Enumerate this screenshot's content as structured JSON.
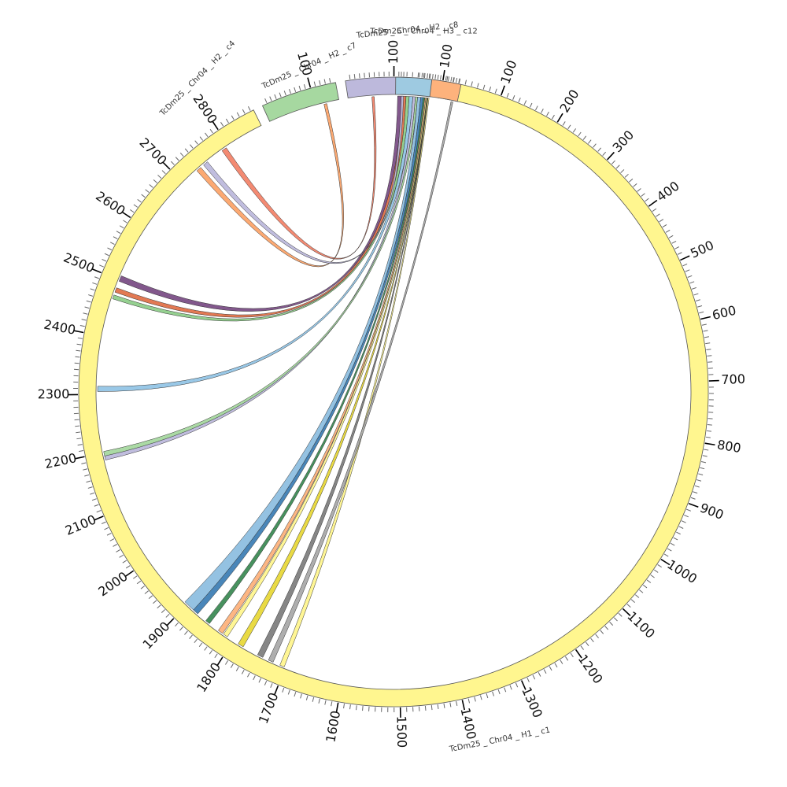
{
  "diagram": {
    "type": "circos",
    "colors": {
      "c1": "#fff68f",
      "c4": "#a6d8a0",
      "c7": "#bdb9dc",
      "c8": "#fdb27c",
      "c12": "#9ecae1",
      "stroke": "#555555"
    },
    "segments": [
      {
        "id": "c1",
        "label": "TcDm25 _ Chr04 _ H1 _ c1",
        "length": 2865,
        "color": "#fff68f",
        "ticks": [
          "100",
          "200",
          "300",
          "400",
          "500",
          "600",
          "700",
          "800",
          "900",
          "1000",
          "1100",
          "1200",
          "1300",
          "1400",
          "1500",
          "1600",
          "1700",
          "1800",
          "1900",
          "2000",
          "2100",
          "2200",
          "2300",
          "2400",
          "2500",
          "2600",
          "2700",
          "2800"
        ]
      },
      {
        "id": "c4",
        "label": "TcDm25 _ Chr04 _ H2 _ c4",
        "length": 150,
        "color": "#a6d8a0",
        "ticks": [
          "100"
        ]
      },
      {
        "id": "c7",
        "label": "TcDm25 _ Chr04 _ H2 _ c7",
        "length": 125,
        "color": "#bdb9dc",
        "ticks": [
          "100"
        ]
      },
      {
        "id": "c8",
        "label": "TcDm25 _ Chr04 _ H2 _ c8",
        "length": 170,
        "color": "#fdb27c",
        "ticks": [
          "100"
        ]
      },
      {
        "id": "c12",
        "label": "TcDm25 _ Chr04 _ H3 _ c12",
        "length": 65,
        "color": "#9ecae1",
        "ticks": []
      }
    ],
    "links": [
      {
        "a_seg": "c12",
        "a": [
          4,
          12
        ],
        "b_seg": "c1",
        "b": [
          2498,
          2508
        ],
        "color": "#7b4f86"
      },
      {
        "a_seg": "c12",
        "a": [
          12,
          20
        ],
        "b_seg": "c1",
        "b": [
          2478,
          2486
        ],
        "color": "#e0724a"
      },
      {
        "a_seg": "c12",
        "a": [
          20,
          26
        ],
        "b_seg": "c1",
        "b": [
          2466,
          2473
        ],
        "color": "#8fcd8a"
      },
      {
        "a_seg": "c12",
        "a": [
          26,
          33
        ],
        "b_seg": "c1",
        "b": [
          2305,
          2314
        ],
        "color": "#93c5e6"
      },
      {
        "a_seg": "c12",
        "a": [
          33,
          38
        ],
        "b_seg": "c1",
        "b": [
          2187,
          2195
        ],
        "color": "#bdb9dc"
      },
      {
        "a_seg": "c12",
        "a": [
          38,
          42
        ],
        "b_seg": "c1",
        "b": [
          2194,
          2202
        ],
        "color": "#a6d8a0"
      },
      {
        "a_seg": "c12",
        "a": [
          42,
          48
        ],
        "b_seg": "c1",
        "b": [
          1886,
          1906
        ],
        "color": "#8ebfe0"
      },
      {
        "a_seg": "c12",
        "a": [
          48,
          53
        ],
        "b_seg": "c1",
        "b": [
          1876,
          1886
        ],
        "color": "#3f7fb5"
      },
      {
        "a_seg": "c12",
        "a": [
          53,
          56
        ],
        "b_seg": "c1",
        "b": [
          1850,
          1858
        ],
        "color": "#3d8b55"
      },
      {
        "a_seg": "c12",
        "a": [
          56,
          58
        ],
        "b_seg": "c1",
        "b": [
          1822,
          1831
        ],
        "color": "#fdb27c"
      },
      {
        "a_seg": "c12",
        "a": [
          58,
          60
        ],
        "b_seg": "c1",
        "b": [
          1812,
          1820
        ],
        "color": "#fff68f"
      },
      {
        "a_seg": "c12",
        "a": [
          60,
          61
        ],
        "b_seg": "c1",
        "b": [
          1780,
          1790
        ],
        "color": "#e8d83a"
      },
      {
        "a_seg": "c12",
        "a": [
          61,
          62
        ],
        "b_seg": "c1",
        "b": [
          1742,
          1752
        ],
        "color": "#808080"
      },
      {
        "a_seg": "c12",
        "a": [
          62,
          64
        ],
        "b_seg": "c1",
        "b": [
          1702,
          1710
        ],
        "color": "#fff68f"
      },
      {
        "a_seg": "c8",
        "a": [
          145,
          153
        ],
        "b_seg": "c1",
        "b": [
          1727,
          1727
        ],
        "color": "#aaaaaa"
      },
      {
        "a_seg": "c7",
        "a": [
          52,
          57
        ],
        "b_seg": "c1",
        "b": [
          2790,
          2790
        ],
        "color": "#f2846a"
      },
      {
        "a_seg": "c4",
        "a": [
          118,
          124
        ],
        "b_seg": "c1",
        "b": [
          2735,
          2735
        ],
        "color": "#fca46a"
      },
      {
        "a_seg": "c7",
        "a": [
          116,
          121
        ],
        "b_seg": "c1",
        "b": [
          2750,
          2750
        ],
        "color": "#bdb9dc"
      }
    ]
  }
}
